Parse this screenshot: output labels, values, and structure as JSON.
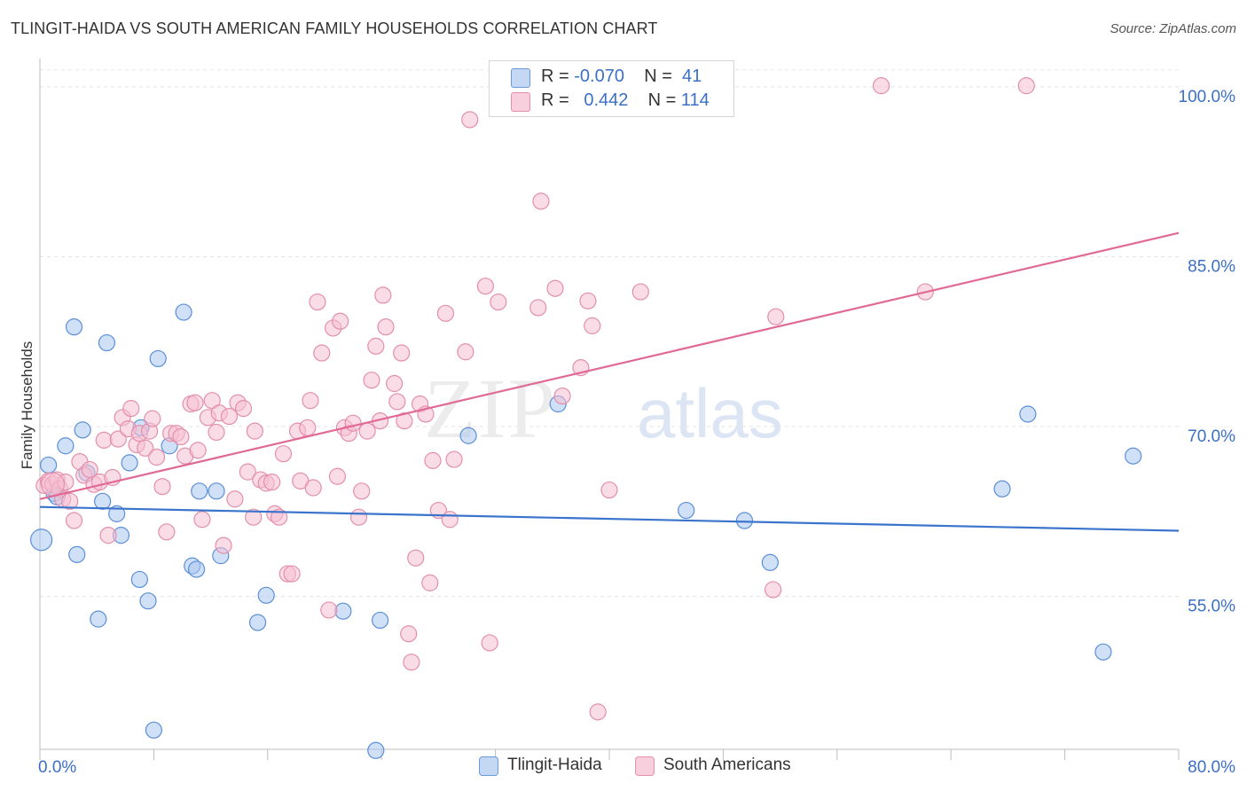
{
  "title": "TLINGIT-HAIDA VS SOUTH AMERICAN FAMILY HOUSEHOLDS CORRELATION CHART",
  "source": "Source: ZipAtlas.com",
  "watermark": {
    "zip": "ZIP",
    "atlas": "atlas"
  },
  "legend": {
    "rows": [
      {
        "r_label": "R =",
        "r_value": "-0.070",
        "n_label": "N =",
        "n_value": "41",
        "color": "#a9c6ef",
        "border": "#5a8ad6"
      },
      {
        "r_label": "R =",
        "r_value": "0.442",
        "n_label": "N =",
        "n_value": "114",
        "color": "#f6bfd1",
        "border": "#e07ea0"
      }
    ]
  },
  "bottom_legend": [
    "Tlingit-Haida",
    "South Americans"
  ],
  "chart_data": {
    "type": "scatter",
    "title": "TLINGIT-HAIDA VS SOUTH AMERICAN FAMILY HOUSEHOLDS CORRELATION CHART",
    "xlabel": "",
    "ylabel": "Family Households",
    "xlim": [
      0,
      80
    ],
    "ylim": [
      41.5,
      102.5
    ],
    "x_tick_labels": [
      "0.0%",
      "80.0%"
    ],
    "y_ticks": [
      55,
      70,
      85,
      100
    ],
    "y_tick_labels": [
      "55.0%",
      "70.0%",
      "85.0%",
      "100.0%"
    ],
    "series": [
      {
        "name": "Tlingit-Haida",
        "color": "#5b8fd8",
        "fill": "#a9c6ef",
        "trend": {
          "x": [
            0,
            80
          ],
          "y": [
            62.9,
            60.8
          ],
          "color": "#3a74cc"
        },
        "points": [
          [
            0.1,
            60.0
          ],
          [
            0.6,
            66.6
          ],
          [
            1.0,
            64.1
          ],
          [
            1.2,
            63.8
          ],
          [
            1.8,
            68.3
          ],
          [
            2.4,
            78.8
          ],
          [
            2.6,
            58.7
          ],
          [
            3.0,
            69.7
          ],
          [
            3.3,
            65.9
          ],
          [
            4.1,
            53.0
          ],
          [
            4.4,
            63.4
          ],
          [
            4.7,
            77.4
          ],
          [
            5.4,
            62.3
          ],
          [
            5.7,
            60.4
          ],
          [
            6.3,
            66.8
          ],
          [
            7.0,
            56.5
          ],
          [
            7.1,
            69.9
          ],
          [
            7.6,
            54.6
          ],
          [
            8.0,
            43.2
          ],
          [
            8.3,
            76.0
          ],
          [
            9.1,
            68.3
          ],
          [
            10.1,
            80.1
          ],
          [
            10.7,
            57.7
          ],
          [
            11.0,
            57.4
          ],
          [
            11.2,
            64.3
          ],
          [
            12.4,
            64.3
          ],
          [
            12.7,
            58.6
          ],
          [
            15.3,
            52.7
          ],
          [
            15.9,
            55.1
          ],
          [
            21.3,
            53.7
          ],
          [
            23.6,
            41.4
          ],
          [
            23.9,
            52.9
          ],
          [
            30.1,
            69.2
          ],
          [
            36.4,
            72.0
          ],
          [
            45.4,
            62.6
          ],
          [
            49.5,
            61.7
          ],
          [
            51.3,
            58.0
          ],
          [
            67.6,
            64.5
          ],
          [
            69.4,
            71.1
          ],
          [
            74.7,
            50.1
          ],
          [
            76.8,
            67.4
          ]
        ]
      },
      {
        "name": "South Americans",
        "color": "#e38fab",
        "fill": "#f6bfd1",
        "trend": {
          "x": [
            0,
            80
          ],
          "y": [
            63.6,
            87.1
          ],
          "color": "#e06a95"
        },
        "points": [
          [
            0.3,
            64.8
          ],
          [
            0.6,
            65.2
          ],
          [
            0.9,
            64.9
          ],
          [
            1.2,
            65.3
          ],
          [
            1.4,
            64.5
          ],
          [
            1.6,
            63.6
          ],
          [
            1.8,
            65.1
          ],
          [
            2.1,
            63.4
          ],
          [
            2.4,
            61.7
          ],
          [
            2.8,
            66.9
          ],
          [
            3.1,
            65.7
          ],
          [
            3.5,
            66.2
          ],
          [
            3.8,
            64.9
          ],
          [
            4.2,
            65.1
          ],
          [
            4.5,
            68.8
          ],
          [
            4.8,
            60.4
          ],
          [
            5.1,
            65.5
          ],
          [
            5.5,
            68.9
          ],
          [
            5.8,
            70.8
          ],
          [
            6.2,
            69.8
          ],
          [
            6.4,
            71.6
          ],
          [
            6.8,
            68.4
          ],
          [
            7.0,
            69.4
          ],
          [
            7.4,
            68.1
          ],
          [
            7.7,
            69.6
          ],
          [
            7.9,
            70.7
          ],
          [
            8.2,
            67.3
          ],
          [
            8.6,
            64.7
          ],
          [
            8.9,
            60.7
          ],
          [
            9.2,
            69.4
          ],
          [
            9.6,
            69.4
          ],
          [
            9.9,
            69.1
          ],
          [
            10.2,
            67.4
          ],
          [
            10.6,
            72.0
          ],
          [
            10.9,
            72.1
          ],
          [
            11.1,
            67.9
          ],
          [
            11.4,
            61.8
          ],
          [
            11.8,
            70.8
          ],
          [
            12.1,
            72.3
          ],
          [
            12.4,
            69.5
          ],
          [
            12.6,
            71.2
          ],
          [
            12.9,
            59.5
          ],
          [
            13.3,
            70.9
          ],
          [
            13.7,
            63.6
          ],
          [
            13.9,
            72.1
          ],
          [
            14.3,
            71.6
          ],
          [
            14.6,
            66.0
          ],
          [
            15.0,
            62.0
          ],
          [
            15.1,
            69.6
          ],
          [
            15.5,
            65.3
          ],
          [
            15.9,
            65.0
          ],
          [
            16.3,
            65.1
          ],
          [
            16.5,
            62.3
          ],
          [
            16.8,
            62.0
          ],
          [
            17.1,
            67.6
          ],
          [
            17.4,
            57.0
          ],
          [
            17.7,
            57.0
          ],
          [
            18.1,
            69.6
          ],
          [
            18.3,
            65.2
          ],
          [
            18.8,
            69.9
          ],
          [
            19.0,
            72.3
          ],
          [
            19.2,
            64.6
          ],
          [
            19.5,
            81.0
          ],
          [
            19.8,
            76.5
          ],
          [
            20.3,
            53.8
          ],
          [
            20.6,
            78.7
          ],
          [
            20.9,
            65.6
          ],
          [
            21.1,
            79.3
          ],
          [
            21.4,
            69.9
          ],
          [
            21.7,
            69.4
          ],
          [
            22.0,
            70.3
          ],
          [
            22.4,
            62.0
          ],
          [
            22.6,
            64.3
          ],
          [
            23.0,
            69.6
          ],
          [
            23.3,
            74.1
          ],
          [
            23.6,
            77.1
          ],
          [
            23.9,
            70.5
          ],
          [
            24.1,
            81.6
          ],
          [
            24.3,
            78.8
          ],
          [
            24.9,
            73.8
          ],
          [
            25.1,
            72.2
          ],
          [
            25.4,
            76.5
          ],
          [
            25.6,
            70.5
          ],
          [
            25.9,
            51.7
          ],
          [
            26.1,
            49.2
          ],
          [
            26.4,
            58.4
          ],
          [
            26.7,
            72.0
          ],
          [
            27.1,
            71.1
          ],
          [
            27.4,
            56.2
          ],
          [
            27.6,
            67.0
          ],
          [
            28.0,
            62.6
          ],
          [
            28.5,
            80.0
          ],
          [
            28.8,
            61.8
          ],
          [
            29.1,
            67.1
          ],
          [
            29.9,
            76.6
          ],
          [
            30.2,
            97.1
          ],
          [
            31.3,
            82.4
          ],
          [
            31.6,
            50.9
          ],
          [
            32.2,
            81.0
          ],
          [
            35.0,
            80.5
          ],
          [
            35.2,
            89.9
          ],
          [
            36.2,
            82.2
          ],
          [
            36.7,
            72.7
          ],
          [
            38.0,
            75.2
          ],
          [
            38.5,
            81.1
          ],
          [
            38.8,
            78.9
          ],
          [
            39.2,
            44.8
          ],
          [
            40.0,
            64.4
          ],
          [
            42.2,
            81.9
          ],
          [
            51.5,
            55.6
          ],
          [
            51.7,
            79.7
          ],
          [
            59.1,
            100.1
          ],
          [
            62.2,
            81.9
          ],
          [
            69.3,
            100.1
          ]
        ]
      }
    ]
  }
}
